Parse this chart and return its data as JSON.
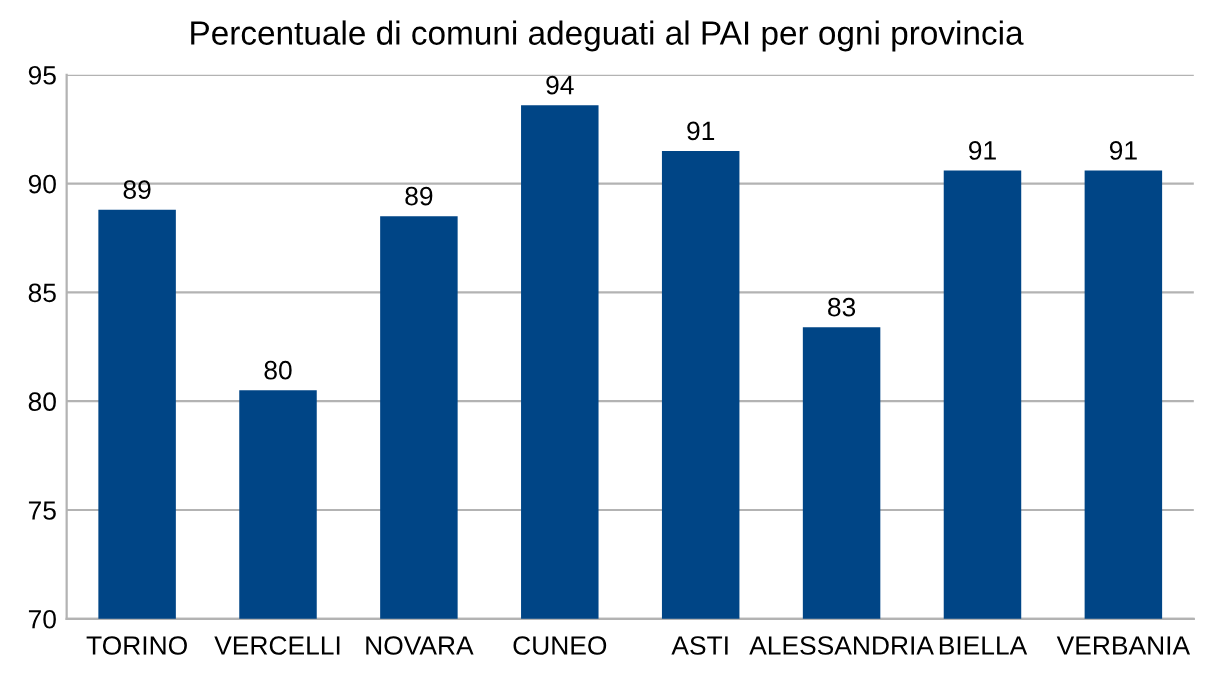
{
  "chart_data": {
    "type": "bar",
    "title": "Percentuale di comuni adeguati al PAI per ogni provincia",
    "categories": [
      "TORINO",
      "VERCELLI",
      "NOVARA",
      "CUNEO",
      "ASTI",
      "ALESSANDRIA",
      "BIELLA",
      "VERBANIA"
    ],
    "values": [
      88.8,
      80.5,
      88.5,
      93.6,
      91.5,
      83.4,
      90.6,
      90.6
    ],
    "value_labels": [
      "89",
      "80",
      "89",
      "94",
      "91",
      "83",
      "91",
      "91"
    ],
    "color": "#004586",
    "ylim": [
      70,
      95
    ],
    "yticks": [
      70,
      75,
      80,
      85,
      90,
      95
    ],
    "grid": "y"
  }
}
